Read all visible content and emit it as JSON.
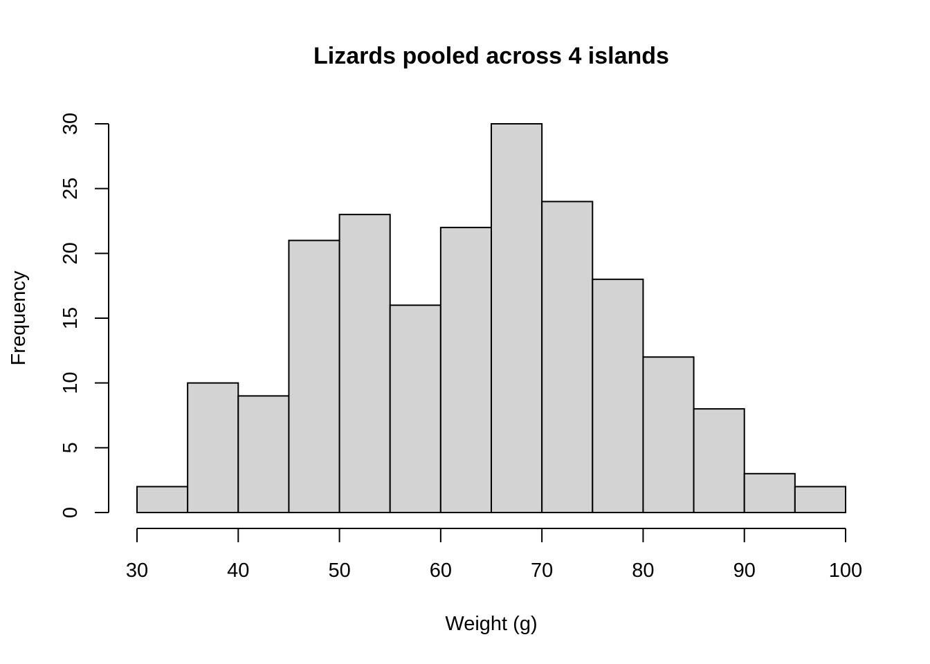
{
  "chart_data": {
    "type": "bar",
    "title": "Lizards pooled across 4 islands",
    "xlabel": "Weight (g)",
    "ylabel": "Frequency",
    "bins": [
      {
        "from": 30,
        "to": 35,
        "count": 2
      },
      {
        "from": 35,
        "to": 40,
        "count": 10
      },
      {
        "from": 40,
        "to": 45,
        "count": 9
      },
      {
        "from": 45,
        "to": 50,
        "count": 21
      },
      {
        "from": 50,
        "to": 55,
        "count": 23
      },
      {
        "from": 55,
        "to": 60,
        "count": 16
      },
      {
        "from": 60,
        "to": 65,
        "count": 22
      },
      {
        "from": 65,
        "to": 70,
        "count": 30
      },
      {
        "from": 70,
        "to": 75,
        "count": 24
      },
      {
        "from": 75,
        "to": 80,
        "count": 18
      },
      {
        "from": 80,
        "to": 85,
        "count": 12
      },
      {
        "from": 85,
        "to": 90,
        "count": 8
      },
      {
        "from": 90,
        "to": 95,
        "count": 3
      },
      {
        "from": 95,
        "to": 100,
        "count": 2
      }
    ],
    "xlim": [
      30,
      100
    ],
    "ylim": [
      0,
      30
    ],
    "x_ticks": [
      "30",
      "40",
      "50",
      "60",
      "70",
      "80",
      "90",
      "100"
    ],
    "y_ticks": [
      "0",
      "5",
      "10",
      "15",
      "20",
      "25",
      "30"
    ],
    "bar_color": "#d3d3d3",
    "grid": false,
    "legend": "none"
  }
}
